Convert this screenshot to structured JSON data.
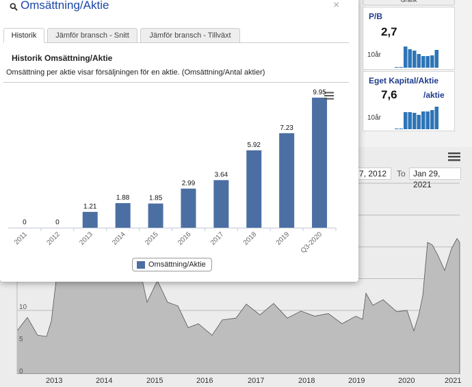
{
  "modal": {
    "title": "Omsättning/Aktie",
    "close_glyph": "×",
    "tabs": [
      {
        "label": "Historik",
        "active": true
      },
      {
        "label": "Jämför bransch - Snitt",
        "active": false
      },
      {
        "label": "Jämför bransch - Tillväxt",
        "active": false
      }
    ],
    "section_title": "Historik Omsättning/Aktie",
    "description": "Omsättning per aktie visar försäljningen för en aktie. (Omsättning/Antal aktier)",
    "legend_label": "Omsättning/Aktie"
  },
  "chart_data": {
    "type": "bar",
    "categories": [
      "2011",
      "2012",
      "2013",
      "2014",
      "2015",
      "2016",
      "2017",
      "2018",
      "2019",
      "Q3-2020"
    ],
    "series": [
      {
        "name": "Omsättning/Aktie",
        "values": [
          0,
          0,
          1.21,
          1.88,
          1.85,
          2.99,
          3.64,
          5.92,
          7.23,
          9.95
        ]
      }
    ],
    "data_labels": [
      "0",
      "0",
      "1.21",
      "1.88",
      "1.85",
      "2.99",
      "3.64",
      "5.92",
      "7.23",
      "9.95"
    ],
    "ylim": [
      0,
      10
    ],
    "grid": false,
    "legend": "bottom-center",
    "bar_color": "#4c6fa3"
  },
  "background": {
    "top_button_label": "Grafik",
    "kpis": [
      {
        "title": "P/B",
        "value": "2,7",
        "unit": "",
        "period": "10år"
      },
      {
        "title": "Eget Kapital/Aktie",
        "value": "7,6",
        "unit": "/aktie",
        "period": "10år"
      }
    ],
    "price_chart": {
      "date_from": "7, 2012",
      "to_label": "To",
      "date_to": "Jan 29, 2021",
      "y_labels": [
        "10",
        "5",
        "0"
      ],
      "x_years": [
        "2013",
        "2014",
        "2015",
        "2016",
        "2017",
        "2018",
        "2019",
        "2020",
        "2021"
      ]
    }
  },
  "colors": {
    "accent": "#1b46a8",
    "bar": "#4c6fa3",
    "kpi_title": "#1d3b8b",
    "spark": "#2e75b6"
  }
}
